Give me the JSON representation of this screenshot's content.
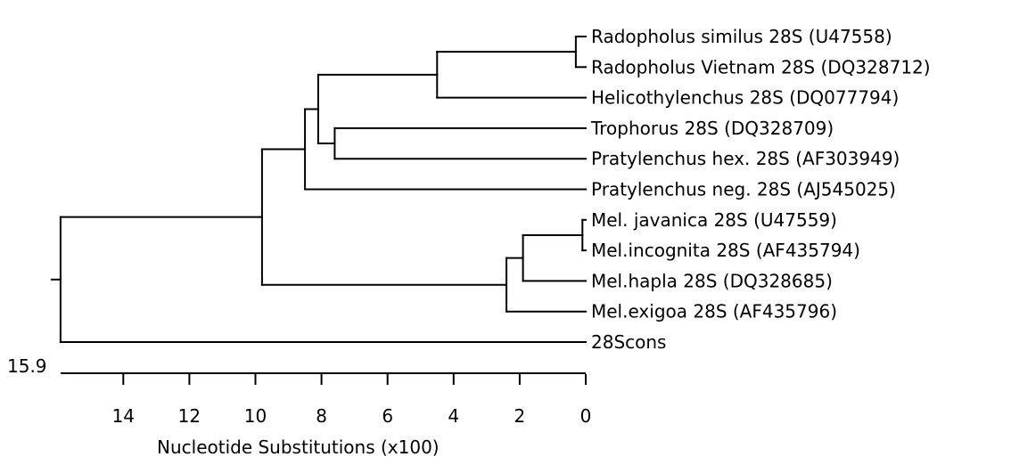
{
  "colors": {
    "line": "#000000",
    "text": "#000000",
    "background": "#ffffff"
  },
  "tree": {
    "axis_title": "Nucleotide Substitutions (x100)",
    "scale_value": "15.9",
    "axis_ticks": [
      "14",
      "12",
      "10",
      "8",
      "6",
      "4",
      "2",
      "0"
    ],
    "taxa": [
      "Radopholus similus 28S (U47558)",
      "Radopholus Vietnam 28S (DQ328712)",
      "Helicothylenchus 28S (DQ077794)",
      "Trophorus 28S (DQ328709)",
      "Pratylenchus hex. 28S (AF303949)",
      "Pratylenchus neg. 28S (AJ545025)",
      "Mel. javanica 28S (U47559)",
      "Mel.incognita 28S (AF435794)",
      "Mel.hapla 28S (DQ328685)",
      "Mel.exigoa 28S (AF435796)",
      "28Scons"
    ]
  },
  "chart_data": {
    "type": "dendrogram",
    "xlabel": "Nucleotide Substitutions (x100)",
    "scale_bar_value": 15.9,
    "xlim": [
      15.9,
      0
    ],
    "x_ticks": [
      14,
      12,
      10,
      8,
      6,
      4,
      2,
      0
    ],
    "leaves": [
      "Radopholus similus 28S (U47558)",
      "Radopholus Vietnam 28S (DQ328712)",
      "Helicothylenchus 28S (DQ077794)",
      "Trophorus 28S (DQ328709)",
      "Pratylenchus hex. 28S (AF303949)",
      "Pratylenchus neg. 28S (AJ545025)",
      "Mel. javanica 28S (U47559)",
      "Mel.incognita 28S (AF435794)",
      "Mel.hapla 28S (DQ328685)",
      "Mel.exigoa 28S (AF435796)",
      "28Scons"
    ],
    "nodes": [
      {
        "id": "n1",
        "children": [
          0,
          1
        ],
        "distance": 0.3
      },
      {
        "id": "n2",
        "children": [
          "n1",
          2
        ],
        "distance": 4.5
      },
      {
        "id": "n3",
        "children": [
          3,
          4
        ],
        "distance": 7.6
      },
      {
        "id": "n4",
        "children": [
          "n2",
          "n3"
        ],
        "distance": 8.1
      },
      {
        "id": "n5",
        "children": [
          "n4",
          5
        ],
        "distance": 8.5
      },
      {
        "id": "n6",
        "children": [
          6,
          7
        ],
        "distance": 0.1
      },
      {
        "id": "n7",
        "children": [
          "n6",
          8
        ],
        "distance": 1.9
      },
      {
        "id": "n8",
        "children": [
          "n7",
          9
        ],
        "distance": 2.4
      },
      {
        "id": "n9",
        "children": [
          "n5",
          "n8"
        ],
        "distance": 9.8
      },
      {
        "id": "root",
        "children": [
          "n9",
          10
        ],
        "distance": 15.9
      }
    ]
  }
}
